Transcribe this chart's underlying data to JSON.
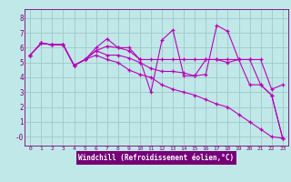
{
  "xlabel": "Windchill (Refroidissement éolien,°C)",
  "background_color": "#c0e8e8",
  "plot_bg_color": "#c0e8e8",
  "line_color": "#bb00bb",
  "grid_color": "#a0c8c8",
  "header_color": "#9900aa",
  "ylim": [
    -0.6,
    8.6
  ],
  "xlim": [
    -0.5,
    23.5
  ],
  "xticks": [
    0,
    1,
    2,
    3,
    4,
    5,
    6,
    7,
    8,
    9,
    10,
    11,
    12,
    13,
    14,
    15,
    16,
    17,
    18,
    19,
    20,
    21,
    22,
    23
  ],
  "yticks": [
    0,
    1,
    2,
    3,
    4,
    5,
    6,
    7,
    8
  ],
  "ytick_labels": [
    "-0",
    "1",
    "2",
    "3",
    "4",
    "5",
    "6",
    "7",
    "8"
  ],
  "lines": [
    [
      5.5,
      6.3,
      6.2,
      6.2,
      4.8,
      5.2,
      6.0,
      6.6,
      6.0,
      6.0,
      5.2,
      3.0,
      6.5,
      7.2,
      4.1,
      4.1,
      4.2,
      7.5,
      7.1,
      5.2,
      5.2,
      3.5,
      2.8,
      -0.1
    ],
    [
      5.5,
      6.3,
      6.2,
      6.2,
      4.8,
      5.2,
      5.8,
      6.1,
      6.0,
      5.8,
      5.2,
      5.2,
      5.2,
      5.2,
      5.2,
      5.2,
      5.2,
      5.2,
      5.2,
      5.2,
      5.2,
      5.2,
      3.2,
      3.5
    ],
    [
      5.5,
      6.3,
      6.2,
      6.2,
      4.8,
      5.2,
      5.8,
      5.5,
      5.5,
      5.3,
      5.0,
      4.6,
      4.4,
      4.4,
      4.3,
      4.1,
      5.2,
      5.2,
      5.0,
      5.2,
      3.5,
      3.5,
      2.8,
      -0.1
    ],
    [
      5.5,
      6.3,
      6.2,
      6.2,
      4.8,
      5.2,
      5.5,
      5.2,
      5.0,
      4.5,
      4.2,
      4.0,
      3.5,
      3.2,
      3.0,
      2.8,
      2.5,
      2.2,
      2.0,
      1.5,
      1.0,
      0.5,
      0.0,
      -0.1
    ]
  ]
}
